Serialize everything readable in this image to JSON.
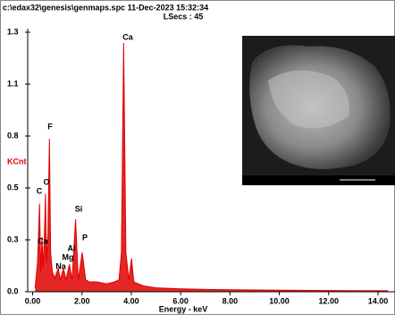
{
  "chart_data": {
    "type": "area",
    "title": "c:\\edax32\\genesis\\genmaps.spc  11-Dec-2023 15:32:34",
    "subtitle": "LSecs : 45",
    "x_label": "Energy - keV",
    "y_label": "KCnt",
    "color": "#e00000",
    "x": [
      0.1,
      0.2,
      0.28,
      0.33,
      0.38,
      0.43,
      0.48,
      0.52,
      0.56,
      0.62,
      0.68,
      0.73,
      0.8,
      0.9,
      1.04,
      1.12,
      1.25,
      1.35,
      1.49,
      1.6,
      1.74,
      1.85,
      2.01,
      2.15,
      2.3,
      2.6,
      3.0,
      3.3,
      3.5,
      3.6,
      3.69,
      3.78,
      3.9,
      4.01,
      4.1,
      4.5,
      5,
      6,
      7,
      8,
      10,
      12,
      14.4
    ],
    "values": [
      0.02,
      0.15,
      0.45,
      0.1,
      0.28,
      0.12,
      0.3,
      0.5,
      0.15,
      0.3,
      0.78,
      0.2,
      0.1,
      0.07,
      0.12,
      0.06,
      0.12,
      0.06,
      0.14,
      0.06,
      0.37,
      0.06,
      0.2,
      0.06,
      0.05,
      0.05,
      0.04,
      0.05,
      0.06,
      0.2,
      1.27,
      0.2,
      0.06,
      0.17,
      0.05,
      0.03,
      0.02,
      0.015,
      0.012,
      0.01,
      0.008,
      0.006,
      0.005
    ],
    "annotations": [
      "Ca",
      "F",
      "O",
      "C",
      "Si",
      "P",
      "Ca",
      "Al",
      "Mg",
      "Na"
    ],
    "xlim": [
      -0.2,
      14.4
    ],
    "ylim": [
      0,
      1.325
    ],
    "xticks": [
      {
        "value": 0,
        "label": "0.00"
      },
      {
        "value": 2,
        "label": "2.00"
      },
      {
        "value": 4,
        "label": "4.00"
      },
      {
        "value": 6,
        "label": "6.00"
      },
      {
        "value": 8,
        "label": "8.00"
      },
      {
        "value": 10,
        "label": "10.00"
      },
      {
        "value": 12,
        "label": "12.00"
      },
      {
        "value": 14,
        "label": "14.00"
      }
    ],
    "yticks": [
      {
        "value": 0,
        "label": "0.0"
      },
      {
        "value": 0.265,
        "label": "0.3"
      },
      {
        "value": 0.53,
        "label": "0.5"
      },
      {
        "value": 0.795,
        "label": "0.8"
      },
      {
        "value": 1.06,
        "label": "1.1"
      },
      {
        "value": 1.325,
        "label": "1.3"
      }
    ]
  }
}
